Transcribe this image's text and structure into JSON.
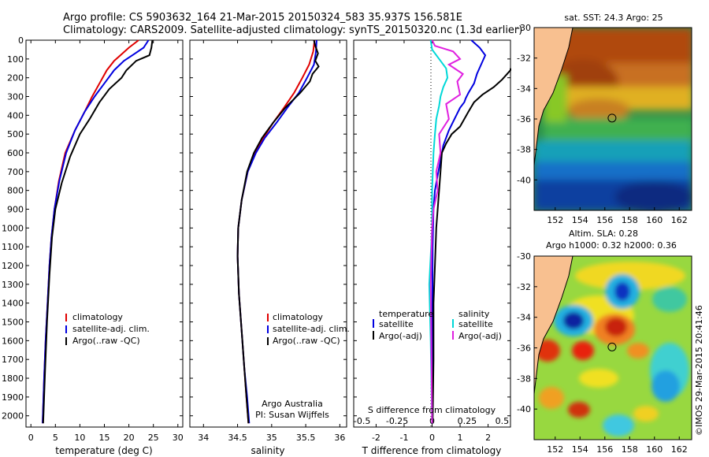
{
  "header": {
    "line1": "Argo profile: CS 5903632_164 21-Mar-2015 20150324_583 35.937S 156.581E",
    "line2": "Climatology: CARS2009. Satellite-adjusted climatology: synTS_20150320.nc (1.3d earlier)"
  },
  "colors": {
    "climatology": "#e00000",
    "satellite": "#0000e0",
    "argo": "#000000",
    "cyan": "#00d8d8",
    "magenta": "#e020e0"
  },
  "chart_data": [
    {
      "type": "line",
      "id": "temperature",
      "xlabel": "temperature (deg C)",
      "ylabel": "",
      "xlim": [
        -1,
        31
      ],
      "ylim": [
        2060,
        0
      ],
      "xticks": [
        0,
        5,
        10,
        15,
        20,
        25,
        30
      ],
      "xtick_labels": [
        "0",
        "5",
        "10",
        "15",
        "20",
        "25",
        "30"
      ],
      "yticks": [
        0,
        100,
        200,
        300,
        400,
        500,
        600,
        700,
        800,
        900,
        1000,
        1100,
        1200,
        1300,
        1400,
        1500,
        1600,
        1700,
        1800,
        1900,
        2000
      ],
      "ytick_labels": [
        "0",
        "100",
        "200",
        "300",
        "400",
        "500",
        "600",
        "700",
        "800",
        "900",
        "1000",
        "1100",
        "1200",
        "1300",
        "1400",
        "1500",
        "1600",
        "1700",
        "1800",
        "1900",
        "2000"
      ],
      "legend": [
        "climatology",
        "satellite-adj. clim.",
        "Argo(..raw -QC)"
      ],
      "series": [
        {
          "name": "climatology",
          "color": "#e00000",
          "x": [
            22,
            20,
            18.5,
            17,
            15.5,
            14,
            12.5,
            11,
            9,
            7,
            5.7,
            4.8,
            4.2,
            3.8,
            3.4,
            3.0,
            2.7,
            2.4
          ],
          "y": [
            0,
            40,
            75,
            110,
            160,
            230,
            300,
            380,
            480,
            600,
            750,
            900,
            1050,
            1200,
            1400,
            1600,
            1800,
            2040
          ]
        },
        {
          "name": "satellite-adj. clim.",
          "color": "#0000e0",
          "x": [
            24,
            23,
            21,
            19,
            17,
            15,
            13,
            11,
            9,
            7.2,
            5.8,
            4.8,
            4.2,
            3.8,
            3.4,
            3.0,
            2.7,
            2.4
          ],
          "y": [
            0,
            40,
            75,
            110,
            160,
            230,
            300,
            380,
            480,
            600,
            750,
            900,
            1050,
            1200,
            1400,
            1600,
            1800,
            2040
          ]
        },
        {
          "name": "Argo(..raw -QC)",
          "color": "#000000",
          "x": [
            24.8,
            24.6,
            24.2,
            21.5,
            19.5,
            18.5,
            16,
            14,
            12,
            10,
            8,
            6.3,
            5,
            4.3,
            3.8,
            3.3,
            2.9,
            2.5
          ],
          "y": [
            0,
            40,
            80,
            110,
            160,
            200,
            260,
            330,
            420,
            500,
            620,
            760,
            900,
            1050,
            1250,
            1500,
            1750,
            2040
          ]
        }
      ]
    },
    {
      "type": "line",
      "id": "salinity",
      "xlabel": "salinity",
      "xlim": [
        33.8,
        36.1
      ],
      "ylim": [
        2060,
        0
      ],
      "xticks": [
        34,
        34.5,
        35,
        35.5,
        36
      ],
      "xtick_labels": [
        "34",
        "34.5",
        "35",
        "35.5",
        "36"
      ],
      "legend": [
        "climatology",
        "satellite-adj. clim.",
        "Argo(..raw -QC)"
      ],
      "annotation": [
        "Argo Australia",
        "PI: Susan Wijffels"
      ],
      "series": [
        {
          "name": "climatology",
          "color": "#e00000",
          "x": [
            35.63,
            35.61,
            35.55,
            35.45,
            35.33,
            35.18,
            35.02,
            34.88,
            34.76,
            34.65,
            34.56,
            34.51,
            34.5,
            34.52,
            34.56,
            34.6,
            34.63,
            34.66
          ],
          "y": [
            0,
            60,
            130,
            200,
            280,
            360,
            440,
            520,
            600,
            700,
            850,
            1000,
            1150,
            1350,
            1550,
            1750,
            1900,
            2040
          ]
        },
        {
          "name": "satellite-adj. clim.",
          "color": "#0000e0",
          "x": [
            35.66,
            35.65,
            35.62,
            35.52,
            35.4,
            35.23,
            35.07,
            34.9,
            34.77,
            34.65,
            34.56,
            34.51,
            34.5,
            34.52,
            34.56,
            34.6,
            34.64,
            34.67
          ],
          "y": [
            0,
            60,
            130,
            200,
            280,
            360,
            440,
            520,
            600,
            700,
            850,
            1000,
            1150,
            1350,
            1550,
            1750,
            1900,
            2040
          ]
        },
        {
          "name": "Argo(..raw -QC)",
          "color": "#000000",
          "x": [
            35.62,
            35.64,
            35.68,
            35.64,
            35.69,
            35.6,
            35.56,
            35.42,
            35.2,
            35.02,
            34.86,
            34.74,
            34.64,
            34.56,
            34.51,
            34.5,
            34.52,
            34.56,
            34.6,
            34.63,
            34.66
          ],
          "y": [
            0,
            30,
            70,
            110,
            140,
            180,
            220,
            280,
            360,
            440,
            520,
            600,
            700,
            850,
            1000,
            1150,
            1350,
            1550,
            1750,
            1900,
            2040
          ]
        }
      ]
    },
    {
      "type": "line",
      "id": "difference",
      "xlabel": "T difference from climatology",
      "top_label": "S difference from climatology",
      "xlim": [
        -2.8,
        2.8
      ],
      "ylim": [
        2060,
        0
      ],
      "xticks": [
        -2,
        -1,
        0,
        1,
        2
      ],
      "xtick_labels": [
        "-2",
        "-1",
        "0",
        "1",
        "2"
      ],
      "top_ticks": [
        -0.5,
        -0.25,
        0,
        0.25,
        0.5
      ],
      "top_tick_labels": [
        "-0.5",
        "-0.25",
        "0",
        "0.25",
        "0.5"
      ],
      "legend_left_title": "temperature",
      "legend_right_title": "salinity",
      "legend": [
        "satellite",
        "Argo(-adj)",
        "satellite",
        "Argo(-adj)"
      ],
      "series": [
        {
          "name": "T satellite",
          "color": "#0000e0",
          "x": [
            1.4,
            1.7,
            1.9,
            1.75,
            1.6,
            1.5,
            1.3,
            1.2,
            1.15,
            1.0,
            0.8,
            0.6,
            0.4,
            0.3,
            0.2,
            0.1,
            0.05,
            0.02,
            0.01,
            0,
            0
          ],
          "y": [
            0,
            40,
            80,
            130,
            180,
            230,
            280,
            310,
            330,
            360,
            420,
            480,
            560,
            640,
            720,
            800,
            900,
            1100,
            1400,
            1700,
            2040
          ]
        },
        {
          "name": "T Argo(-adj)",
          "color": "#000000",
          "x": [
            2.8,
            2.8,
            2.5,
            2.2,
            1.8,
            1.5,
            1.3,
            1.0,
            0.7,
            0.5,
            0.35,
            0.3,
            0.25,
            0.2,
            0.15,
            0.1,
            0.05,
            0.05,
            0.02
          ],
          "y": [
            150,
            160,
            210,
            250,
            290,
            330,
            380,
            460,
            500,
            550,
            600,
            700,
            800,
            900,
            1000,
            1200,
            1400,
            1700,
            2040
          ]
        },
        {
          "name": "S satellite",
          "color": "#00d8d8",
          "x": [
            -0.01,
            0,
            0.05,
            0.1,
            0.11,
            0.08,
            0.06,
            0.05,
            0.03,
            0.02,
            0.01,
            0,
            0,
            -0.02,
            -0.01,
            0
          ],
          "y": [
            0,
            50,
            100,
            150,
            200,
            250,
            300,
            350,
            420,
            500,
            600,
            800,
            1000,
            1300,
            1600,
            2040
          ]
        },
        {
          "name": "S Argo(-adj)",
          "color": "#e020e0",
          "x": [
            0,
            0.02,
            0.15,
            0.2,
            0.12,
            0.22,
            0.18,
            0.2,
            0.1,
            0.12,
            0.05,
            0.06,
            0.03,
            0.04,
            0.01,
            0,
            -0.01,
            0
          ],
          "y": [
            0,
            30,
            60,
            100,
            130,
            180,
            220,
            290,
            340,
            420,
            500,
            600,
            700,
            800,
            900,
            1000,
            1300,
            2040
          ]
        }
      ]
    },
    {
      "type": "heatmap",
      "id": "sst-map",
      "title": "sat. SST: 24.3 Argo: 25",
      "xlim": [
        150.3,
        163
      ],
      "ylim": [
        -42,
        -30
      ],
      "xticks": [
        152,
        154,
        156,
        158,
        160,
        162
      ],
      "xtick_labels": [
        "152",
        "154",
        "156",
        "158",
        "160",
        "162"
      ],
      "yticks": [
        -30,
        -32,
        -34,
        -36,
        -38,
        -40
      ],
      "ytick_labels": [
        "-30",
        "-32",
        "-34",
        "-36",
        "-38",
        "-40"
      ],
      "marker": {
        "lon": 156.58,
        "lat": -35.94
      }
    },
    {
      "type": "heatmap",
      "id": "sla-map",
      "title_line1": "Altim. SLA: 0.28",
      "title_line2": "Argo h1000: 0.32 h2000: 0.36",
      "xlim": [
        150.3,
        163
      ],
      "ylim": [
        -42,
        -30
      ],
      "xticks": [
        152,
        154,
        156,
        158,
        160,
        162
      ],
      "xtick_labels": [
        "152",
        "154",
        "156",
        "158",
        "160",
        "162"
      ],
      "yticks": [
        -30,
        -32,
        -34,
        -36,
        -38,
        -40
      ],
      "ytick_labels": [
        "-30",
        "-32",
        "-34",
        "-36",
        "-38",
        "-40"
      ],
      "marker": {
        "lon": 156.58,
        "lat": -35.94
      }
    }
  ],
  "footer": {
    "credit": "©IMOS 29-Mar-2015 20:41:46"
  }
}
